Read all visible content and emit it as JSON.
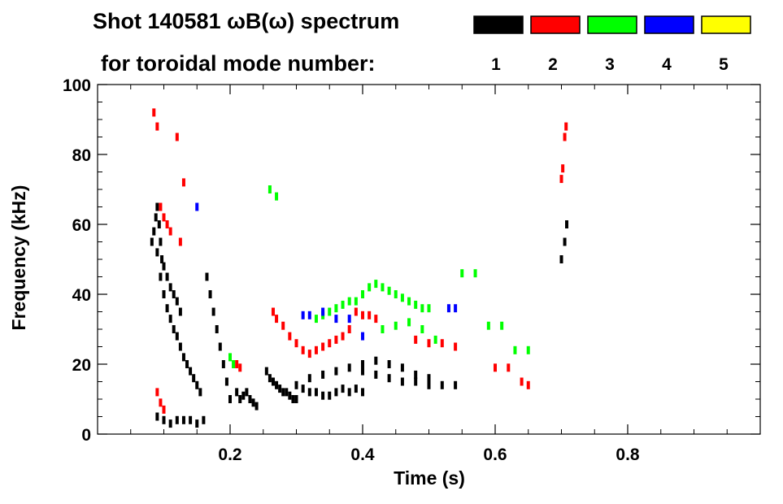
{
  "chart_data": {
    "type": "heatmap",
    "title": "Shot 140581 ωB(ω) spectrum",
    "subtitle": "for toroidal mode number:",
    "xlabel": "Time (s)",
    "ylabel": "Frequency (kHz)",
    "xlim": [
      0.0,
      1.0
    ],
    "ylim": [
      0,
      100
    ],
    "x_ticks": [
      {
        "value": 0.2,
        "label": "0.2"
      },
      {
        "value": 0.4,
        "label": "0.4"
      },
      {
        "value": 0.6,
        "label": "0.6"
      },
      {
        "value": 0.8,
        "label": "0.8"
      }
    ],
    "y_ticks": [
      {
        "value": 0,
        "label": "0"
      },
      {
        "value": 20,
        "label": "20"
      },
      {
        "value": 40,
        "label": "40"
      },
      {
        "value": 60,
        "label": "60"
      },
      {
        "value": 80,
        "label": "80"
      },
      {
        "value": 100,
        "label": "100"
      }
    ],
    "legend": [
      {
        "label": "1",
        "color": "#000000"
      },
      {
        "label": "2",
        "color": "#ff0000"
      },
      {
        "label": "3",
        "color": "#00ff00"
      },
      {
        "label": "4",
        "color": "#0000ff"
      },
      {
        "label": "5",
        "color": "#ffff00"
      }
    ],
    "series": [
      {
        "name": "n=1",
        "color": "#000000",
        "points": [
          [
            0.082,
            55
          ],
          [
            0.085,
            58
          ],
          [
            0.088,
            62
          ],
          [
            0.09,
            65
          ],
          [
            0.093,
            60
          ],
          [
            0.095,
            55
          ],
          [
            0.097,
            50
          ],
          [
            0.1,
            48
          ],
          [
            0.105,
            45
          ],
          [
            0.11,
            42
          ],
          [
            0.115,
            40
          ],
          [
            0.12,
            38
          ],
          [
            0.125,
            35
          ],
          [
            0.09,
            52
          ],
          [
            0.095,
            45
          ],
          [
            0.1,
            40
          ],
          [
            0.105,
            36
          ],
          [
            0.11,
            33
          ],
          [
            0.115,
            30
          ],
          [
            0.12,
            28
          ],
          [
            0.125,
            25
          ],
          [
            0.13,
            22
          ],
          [
            0.135,
            20
          ],
          [
            0.14,
            18
          ],
          [
            0.145,
            16
          ],
          [
            0.15,
            14
          ],
          [
            0.155,
            12
          ],
          [
            0.09,
            5
          ],
          [
            0.1,
            4
          ],
          [
            0.11,
            3
          ],
          [
            0.12,
            4
          ],
          [
            0.13,
            4
          ],
          [
            0.14,
            4
          ],
          [
            0.15,
            3
          ],
          [
            0.16,
            4
          ],
          [
            0.165,
            45
          ],
          [
            0.17,
            40
          ],
          [
            0.175,
            35
          ],
          [
            0.18,
            30
          ],
          [
            0.185,
            25
          ],
          [
            0.19,
            20
          ],
          [
            0.195,
            15
          ],
          [
            0.2,
            10
          ],
          [
            0.21,
            12
          ],
          [
            0.215,
            10
          ],
          [
            0.22,
            11
          ],
          [
            0.225,
            12
          ],
          [
            0.23,
            10
          ],
          [
            0.235,
            9
          ],
          [
            0.24,
            8
          ],
          [
            0.255,
            18
          ],
          [
            0.26,
            16
          ],
          [
            0.265,
            15
          ],
          [
            0.27,
            14
          ],
          [
            0.275,
            13
          ],
          [
            0.28,
            12
          ],
          [
            0.285,
            12
          ],
          [
            0.29,
            11
          ],
          [
            0.295,
            10
          ],
          [
            0.3,
            10
          ],
          [
            0.3,
            14
          ],
          [
            0.31,
            13
          ],
          [
            0.32,
            12
          ],
          [
            0.33,
            12
          ],
          [
            0.34,
            11
          ],
          [
            0.35,
            11
          ],
          [
            0.36,
            12
          ],
          [
            0.37,
            13
          ],
          [
            0.38,
            12
          ],
          [
            0.39,
            13
          ],
          [
            0.4,
            12
          ],
          [
            0.32,
            16
          ],
          [
            0.34,
            17
          ],
          [
            0.36,
            18
          ],
          [
            0.38,
            19
          ],
          [
            0.4,
            18
          ],
          [
            0.42,
            17
          ],
          [
            0.44,
            16
          ],
          [
            0.46,
            15
          ],
          [
            0.48,
            15
          ],
          [
            0.5,
            14
          ],
          [
            0.52,
            14
          ],
          [
            0.54,
            14
          ],
          [
            0.4,
            20
          ],
          [
            0.42,
            21
          ],
          [
            0.44,
            20
          ],
          [
            0.46,
            19
          ],
          [
            0.48,
            17
          ],
          [
            0.5,
            16
          ],
          [
            0.7,
            50
          ],
          [
            0.705,
            55
          ],
          [
            0.708,
            60
          ]
        ]
      },
      {
        "name": "n=2",
        "color": "#ff0000",
        "points": [
          [
            0.085,
            92
          ],
          [
            0.09,
            88
          ],
          [
            0.095,
            65
          ],
          [
            0.1,
            62
          ],
          [
            0.105,
            60
          ],
          [
            0.11,
            58
          ],
          [
            0.12,
            85
          ],
          [
            0.13,
            72
          ],
          [
            0.09,
            12
          ],
          [
            0.095,
            9
          ],
          [
            0.1,
            7
          ],
          [
            0.125,
            55
          ],
          [
            0.21,
            20
          ],
          [
            0.215,
            19
          ],
          [
            0.265,
            35
          ],
          [
            0.27,
            33
          ],
          [
            0.28,
            31
          ],
          [
            0.29,
            28
          ],
          [
            0.3,
            26
          ],
          [
            0.31,
            24
          ],
          [
            0.32,
            23
          ],
          [
            0.33,
            24
          ],
          [
            0.34,
            25
          ],
          [
            0.35,
            26
          ],
          [
            0.36,
            27
          ],
          [
            0.37,
            28
          ],
          [
            0.38,
            30
          ],
          [
            0.39,
            35
          ],
          [
            0.4,
            34
          ],
          [
            0.41,
            34
          ],
          [
            0.42,
            33
          ],
          [
            0.48,
            27
          ],
          [
            0.5,
            26
          ],
          [
            0.52,
            26
          ],
          [
            0.54,
            25
          ],
          [
            0.6,
            19
          ],
          [
            0.62,
            19
          ],
          [
            0.64,
            15
          ],
          [
            0.65,
            14
          ],
          [
            0.7,
            73
          ],
          [
            0.702,
            76
          ],
          [
            0.705,
            85
          ],
          [
            0.707,
            88
          ]
        ]
      },
      {
        "name": "n=3",
        "color": "#00ff00",
        "points": [
          [
            0.2,
            22
          ],
          [
            0.205,
            20
          ],
          [
            0.33,
            33
          ],
          [
            0.34,
            34
          ],
          [
            0.35,
            35
          ],
          [
            0.36,
            36
          ],
          [
            0.37,
            37
          ],
          [
            0.38,
            38
          ],
          [
            0.39,
            38
          ],
          [
            0.4,
            40
          ],
          [
            0.41,
            42
          ],
          [
            0.42,
            43
          ],
          [
            0.43,
            42
          ],
          [
            0.44,
            41
          ],
          [
            0.45,
            40
          ],
          [
            0.46,
            39
          ],
          [
            0.47,
            38
          ],
          [
            0.48,
            37
          ],
          [
            0.49,
            36
          ],
          [
            0.5,
            36
          ],
          [
            0.43,
            30
          ],
          [
            0.45,
            31
          ],
          [
            0.47,
            32
          ],
          [
            0.49,
            30
          ],
          [
            0.51,
            27
          ],
          [
            0.55,
            46
          ],
          [
            0.57,
            46
          ],
          [
            0.59,
            31
          ],
          [
            0.61,
            31
          ],
          [
            0.63,
            24
          ],
          [
            0.65,
            24
          ],
          [
            0.26,
            70
          ],
          [
            0.27,
            68
          ]
        ]
      },
      {
        "name": "n=4",
        "color": "#0000ff",
        "points": [
          [
            0.31,
            34
          ],
          [
            0.32,
            34
          ],
          [
            0.34,
            35
          ],
          [
            0.36,
            33
          ],
          [
            0.38,
            33
          ],
          [
            0.4,
            28
          ],
          [
            0.53,
            36
          ],
          [
            0.54,
            36
          ],
          [
            0.15,
            65
          ]
        ]
      },
      {
        "name": "n=5",
        "color": "#ffff00",
        "points": []
      }
    ]
  }
}
